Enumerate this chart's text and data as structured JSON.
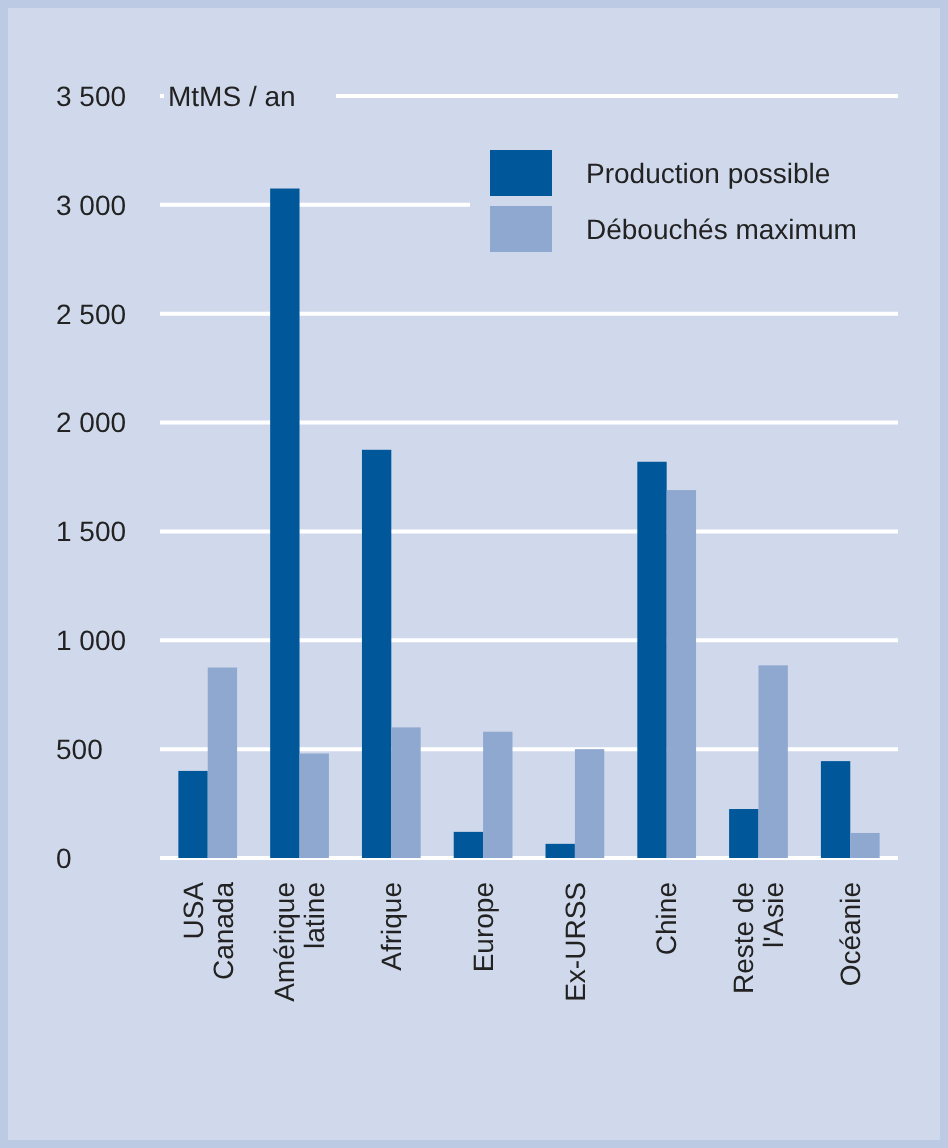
{
  "chart_data": {
    "type": "bar",
    "ylabel": "MtMS / an",
    "categories": [
      "USA\nCanada",
      "Amérique\nlatine",
      "Afrique",
      "Europe",
      "Ex-URSS",
      "Chine",
      "Reste de\nl'Asie",
      "Océanie"
    ],
    "series": [
      {
        "name": "Production possible",
        "color": "#00589b",
        "values": [
          400,
          3075,
          1875,
          120,
          65,
          1820,
          225,
          445
        ]
      },
      {
        "name": "Débouchés maximum",
        "color": "#8fa8cf",
        "values": [
          875,
          480,
          600,
          580,
          500,
          1690,
          885,
          115
        ]
      }
    ],
    "ylim": [
      0,
      3500
    ],
    "yticks": [
      {
        "value": 0,
        "label": "0"
      },
      {
        "value": 500,
        "label": "500"
      },
      {
        "value": 1000,
        "label": "1 000"
      },
      {
        "value": 1500,
        "label": "1 500"
      },
      {
        "value": 2000,
        "label": "2 000"
      },
      {
        "value": 2500,
        "label": "2 500"
      },
      {
        "value": 3000,
        "label": "3 000"
      },
      {
        "value": 3500,
        "label": "3 500"
      }
    ],
    "grid": "y",
    "legend": "top right"
  }
}
